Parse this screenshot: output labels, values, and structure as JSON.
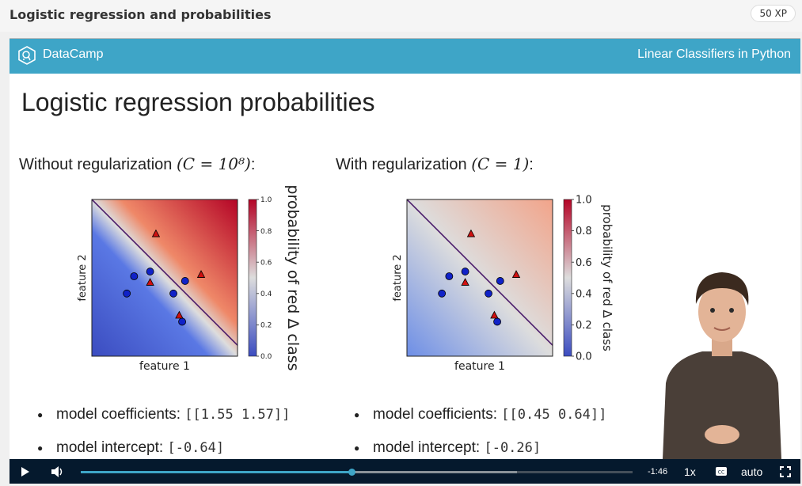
{
  "lesson": {
    "title": "Logistic regression and probabilities",
    "xp": "50 XP"
  },
  "header": {
    "brand": "DataCamp",
    "course": "Linear Classifiers in Python"
  },
  "slide": {
    "title": "Logistic regression probabilities",
    "left": {
      "caption": "Without regularization",
      "math": "(C = 10⁸)",
      "colon": ":"
    },
    "right": {
      "caption": "With regularization",
      "math": "(C = 1)",
      "colon": ":"
    }
  },
  "chart_data": [
    {
      "type": "heatmap",
      "xlabel": "feature 1",
      "ylabel": "feature 2",
      "colorbar_label": "probability of red Δ class",
      "colorbar_ticks": [
        "0.0",
        "0.2",
        "0.4",
        "0.6",
        "0.8",
        "1.0"
      ],
      "colormap": "coolwarm",
      "grid": false,
      "boundary_sharpness": "sharp",
      "triangles": [
        [
          0.44,
          0.22
        ],
        [
          0.75,
          0.48
        ],
        [
          0.4,
          0.53
        ],
        [
          0.6,
          0.74
        ]
      ],
      "circles": [
        [
          0.29,
          0.49
        ],
        [
          0.4,
          0.46
        ],
        [
          0.64,
          0.52
        ],
        [
          0.24,
          0.6
        ],
        [
          0.56,
          0.6
        ],
        [
          0.62,
          0.78
        ]
      ]
    },
    {
      "type": "heatmap",
      "xlabel": "feature 1",
      "ylabel": "feature 2",
      "colorbar_label": "probability of red Δ class",
      "colorbar_ticks": [
        "0.0",
        "0.2",
        "0.4",
        "0.6",
        "0.8",
        "1.0"
      ],
      "colormap": "coolwarm",
      "grid": false,
      "boundary_sharpness": "soft",
      "triangles": [
        [
          0.44,
          0.22
        ],
        [
          0.75,
          0.48
        ],
        [
          0.4,
          0.53
        ],
        [
          0.6,
          0.74
        ]
      ],
      "circles": [
        [
          0.29,
          0.49
        ],
        [
          0.4,
          0.46
        ],
        [
          0.64,
          0.52
        ],
        [
          0.24,
          0.6
        ],
        [
          0.56,
          0.6
        ],
        [
          0.62,
          0.78
        ]
      ]
    }
  ],
  "bullets_left": [
    {
      "label": "model coefficients:",
      "code": "[[1.55 1.57]]"
    },
    {
      "label": "model intercept:",
      "code": "[-0.64]"
    }
  ],
  "bullets_right": [
    {
      "label": "model coefficients:",
      "code": "[[0.45 0.64]]"
    },
    {
      "label": "model intercept:",
      "code": "[-0.26]"
    }
  ],
  "player": {
    "time_remaining": "-1:46",
    "speed": "1x",
    "quality": "auto",
    "progress_fraction": 0.49,
    "buffered_fraction": 0.79,
    "icons": [
      "play-icon",
      "volume-icon",
      "captions-icon",
      "fullscreen-icon"
    ]
  }
}
